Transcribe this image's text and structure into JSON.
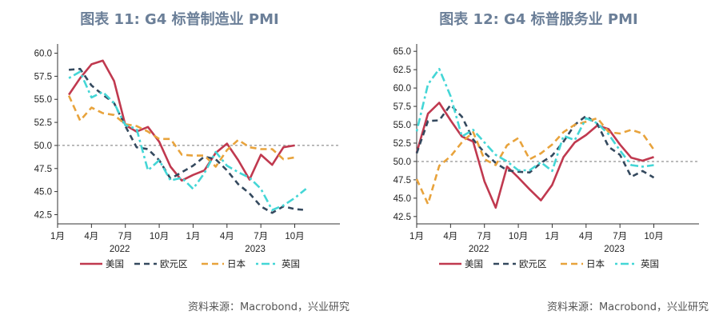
{
  "source": "资料来源：Macrobond，兴业研究",
  "chart_data": [
    {
      "type": "line",
      "title": "图表 11: G4 标普制造业 PMI",
      "ylim": [
        41.5,
        61.0
      ],
      "yticks": [
        "60.0",
        "57.5",
        "55.0",
        "52.5",
        "50.0",
        "47.5",
        "45.0",
        "42.5"
      ],
      "xticks": [
        "1月",
        "4月",
        "7月",
        "10月",
        "1月",
        "4月",
        "7月",
        "10月"
      ],
      "years": [
        "2022",
        "2023"
      ],
      "reference_line": 50,
      "x": [
        "2022-02",
        "2022-03",
        "2022-04",
        "2022-05",
        "2022-06",
        "2022-07",
        "2022-08",
        "2022-09",
        "2022-10",
        "2022-11",
        "2022-12",
        "2023-01",
        "2023-02",
        "2023-03",
        "2023-04",
        "2023-05",
        "2023-06",
        "2023-07",
        "2023-08",
        "2023-09",
        "2023-10",
        "2023-11"
      ],
      "series": [
        {
          "name": "美国",
          "color": "#c0394f",
          "dash": "none",
          "values": [
            55.5,
            57.3,
            58.8,
            59.2,
            57.0,
            52.2,
            51.5,
            52.0,
            50.4,
            47.7,
            46.2,
            46.8,
            47.3,
            49.2,
            50.2,
            48.4,
            46.3,
            49.0,
            47.9,
            49.8,
            50.0,
            null
          ]
        },
        {
          "name": "欧元区",
          "color": "#34495e",
          "dash": "7,5",
          "values": [
            58.2,
            58.3,
            56.5,
            55.5,
            54.6,
            52.1,
            49.8,
            49.6,
            48.4,
            46.4,
            47.1,
            47.8,
            48.8,
            48.5,
            47.3,
            45.8,
            44.8,
            43.4,
            42.7,
            43.4,
            43.1,
            43.0
          ]
        },
        {
          "name": "日本",
          "color": "#e8a33c",
          "dash": "8,5",
          "values": [
            55.4,
            52.7,
            54.1,
            53.5,
            53.3,
            52.3,
            52.1,
            51.5,
            50.7,
            50.7,
            49.0,
            48.9,
            48.9,
            47.7,
            49.5,
            50.6,
            49.8,
            49.6,
            49.6,
            48.5,
            48.7,
            null
          ]
        },
        {
          "name": "英国",
          "color": "#44d6d6",
          "dash": "3,4,10,4",
          "values": [
            57.3,
            58.0,
            55.2,
            55.8,
            54.6,
            52.2,
            51.8,
            47.3,
            48.4,
            46.2,
            46.5,
            45.3,
            47.0,
            49.3,
            47.8,
            47.1,
            46.5,
            45.3,
            43.0,
            43.5,
            44.3,
            45.3
          ]
        }
      ]
    },
    {
      "type": "line",
      "title": "图表 12: G4 标普服务业 PMI",
      "ylim": [
        41.5,
        66.0
      ],
      "yticks": [
        "65.0",
        "62.5",
        "60.0",
        "57.5",
        "55.0",
        "52.5",
        "50.0",
        "47.5",
        "45.0",
        "42.5"
      ],
      "xticks": [
        "1月",
        "4月",
        "7月",
        "10月",
        "1月",
        "4月",
        "7月",
        "10月"
      ],
      "years": [
        "2022",
        "2023"
      ],
      "reference_line": 50,
      "x": [
        "2022-01",
        "2022-02",
        "2022-03",
        "2022-04",
        "2022-05",
        "2022-06",
        "2022-07",
        "2022-08",
        "2022-09",
        "2022-10",
        "2022-11",
        "2022-12",
        "2023-01",
        "2023-02",
        "2023-03",
        "2023-04",
        "2023-05",
        "2023-06",
        "2023-07",
        "2023-08",
        "2023-09",
        "2023-10",
        "2023-11"
      ],
      "series": [
        {
          "name": "美国",
          "color": "#c0394f",
          "dash": "none",
          "values": [
            51.2,
            56.5,
            58.0,
            55.6,
            53.4,
            52.7,
            47.3,
            43.7,
            49.3,
            47.8,
            46.2,
            44.7,
            46.8,
            50.6,
            52.6,
            53.6,
            54.9,
            54.4,
            52.3,
            50.5,
            50.1,
            50.6,
            null
          ]
        },
        {
          "name": "欧元区",
          "color": "#34495e",
          "dash": "7,5",
          "values": [
            51.1,
            55.5,
            55.6,
            57.7,
            56.1,
            53.0,
            51.2,
            49.8,
            48.8,
            48.6,
            48.5,
            49.8,
            50.8,
            52.7,
            55.0,
            56.2,
            55.1,
            52.0,
            50.9,
            47.9,
            48.7,
            47.8,
            null
          ]
        },
        {
          "name": "日本",
          "color": "#e8a33c",
          "dash": "8,5",
          "values": [
            47.6,
            44.2,
            49.4,
            50.7,
            52.6,
            54.0,
            50.3,
            49.5,
            52.2,
            53.2,
            50.3,
            51.1,
            52.3,
            54.0,
            55.0,
            55.4,
            55.9,
            54.0,
            53.8,
            54.3,
            53.8,
            51.6,
            null
          ]
        },
        {
          "name": "英国",
          "color": "#44d6d6",
          "dash": "3,4,10,4",
          "values": [
            54.1,
            60.5,
            62.6,
            58.9,
            53.4,
            54.3,
            52.6,
            50.9,
            50.0,
            48.8,
            48.8,
            49.9,
            48.7,
            53.5,
            52.9,
            55.9,
            55.2,
            53.7,
            51.5,
            49.5,
            49.3,
            49.5,
            null
          ]
        }
      ]
    }
  ]
}
